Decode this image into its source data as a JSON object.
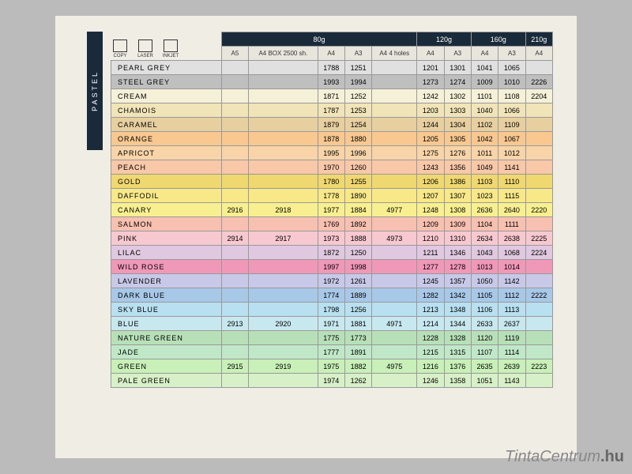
{
  "sidebar": {
    "label": "PASTEL"
  },
  "icons": [
    {
      "label": "COPY"
    },
    {
      "label": "LASER"
    },
    {
      "label": "INKJET"
    }
  ],
  "weights": [
    "80g",
    "120g",
    "160g",
    "210g"
  ],
  "weight_spans": [
    5,
    2,
    2,
    1
  ],
  "sizes": [
    "A5",
    "A4 BOX 2500 sh.",
    "A4",
    "A3",
    "A4 4 holes",
    "A4",
    "A3",
    "A4",
    "A3",
    "A4"
  ],
  "rows": [
    {
      "name": "PEARL GREY",
      "bg": "#e0e0e0",
      "v": [
        "",
        "",
        "1788",
        "1251",
        "",
        "1201",
        "1301",
        "1041",
        "1065",
        ""
      ]
    },
    {
      "name": "STEEL GREY",
      "bg": "#bfbfbf",
      "v": [
        "",
        "",
        "1993",
        "1994",
        "",
        "1273",
        "1274",
        "1009",
        "1010",
        "2226"
      ]
    },
    {
      "name": "CREAM",
      "bg": "#f5f0d8",
      "v": [
        "",
        "",
        "1871",
        "1252",
        "",
        "1242",
        "1302",
        "1101",
        "1108",
        "2204"
      ]
    },
    {
      "name": "CHAMOIS",
      "bg": "#f0e4b8",
      "v": [
        "",
        "",
        "1787",
        "1253",
        "",
        "1203",
        "1303",
        "1040",
        "1066",
        ""
      ]
    },
    {
      "name": "CARAMEL",
      "bg": "#e8cfa0",
      "v": [
        "",
        "",
        "1879",
        "1254",
        "",
        "1244",
        "1304",
        "1102",
        "1109",
        ""
      ]
    },
    {
      "name": "ORANGE",
      "bg": "#f8c890",
      "v": [
        "",
        "",
        "1878",
        "1880",
        "",
        "1205",
        "1305",
        "1042",
        "1067",
        ""
      ]
    },
    {
      "name": "APRICOT",
      "bg": "#f8d4a8",
      "v": [
        "",
        "",
        "1995",
        "1996",
        "",
        "1275",
        "1276",
        "1011",
        "1012",
        ""
      ]
    },
    {
      "name": "PEACH",
      "bg": "#f8c8a8",
      "v": [
        "",
        "",
        "1970",
        "1260",
        "",
        "1243",
        "1356",
        "1049",
        "1141",
        ""
      ]
    },
    {
      "name": "GOLD",
      "bg": "#f0d870",
      "v": [
        "",
        "",
        "1780",
        "1255",
        "",
        "1206",
        "1386",
        "1103",
        "1110",
        ""
      ]
    },
    {
      "name": "DAFFODIL",
      "bg": "#f8e888",
      "v": [
        "",
        "",
        "1778",
        "1890",
        "",
        "1207",
        "1307",
        "1023",
        "1115",
        ""
      ]
    },
    {
      "name": "CANARY",
      "bg": "#f8f090",
      "v": [
        "2916",
        "2918",
        "1977",
        "1884",
        "4977",
        "1248",
        "1308",
        "2636",
        "2640",
        "2220"
      ]
    },
    {
      "name": "SALMON",
      "bg": "#f8c0b0",
      "v": [
        "",
        "",
        "1769",
        "1892",
        "",
        "1209",
        "1309",
        "1104",
        "1111",
        ""
      ]
    },
    {
      "name": "PINK",
      "bg": "#f8c8d0",
      "v": [
        "2914",
        "2917",
        "1973",
        "1888",
        "4973",
        "1210",
        "1310",
        "2634",
        "2638",
        "2225"
      ]
    },
    {
      "name": "LILAC",
      "bg": "#e0c8e0",
      "v": [
        "",
        "",
        "1872",
        "1250",
        "",
        "1211",
        "1346",
        "1043",
        "1068",
        "2224"
      ]
    },
    {
      "name": "WILD ROSE",
      "bg": "#f098b8",
      "v": [
        "",
        "",
        "1997",
        "1998",
        "",
        "1277",
        "1278",
        "1013",
        "1014",
        ""
      ]
    },
    {
      "name": "LAVENDER",
      "bg": "#c8c8e8",
      "v": [
        "",
        "",
        "1972",
        "1261",
        "",
        "1245",
        "1357",
        "1050",
        "1142",
        ""
      ]
    },
    {
      "name": "DARK BLUE",
      "bg": "#a8c8e8",
      "v": [
        "",
        "",
        "1774",
        "1889",
        "",
        "1282",
        "1342",
        "1105",
        "1112",
        "2222"
      ]
    },
    {
      "name": "SKY BLUE",
      "bg": "#b8e0f0",
      "v": [
        "",
        "",
        "1798",
        "1256",
        "",
        "1213",
        "1348",
        "1106",
        "1113",
        ""
      ]
    },
    {
      "name": "BLUE",
      "bg": "#c8e8f0",
      "v": [
        "2913",
        "2920",
        "1971",
        "1881",
        "4971",
        "1214",
        "1344",
        "2633",
        "2637",
        ""
      ]
    },
    {
      "name": "NATURE GREEN",
      "bg": "#b8e0b8",
      "v": [
        "",
        "",
        "1775",
        "1773",
        "",
        "1228",
        "1328",
        "1120",
        "1119",
        ""
      ]
    },
    {
      "name": "JADE",
      "bg": "#c0e8c8",
      "v": [
        "",
        "",
        "1777",
        "1891",
        "",
        "1215",
        "1315",
        "1107",
        "1114",
        ""
      ]
    },
    {
      "name": "GREEN",
      "bg": "#c8f0b8",
      "v": [
        "2915",
        "2919",
        "1975",
        "1882",
        "4975",
        "1216",
        "1376",
        "2635",
        "2639",
        "2223"
      ]
    },
    {
      "name": "PALE GREEN",
      "bg": "#d8f0c8",
      "v": [
        "",
        "",
        "1974",
        "1262",
        "",
        "1246",
        "1358",
        "1051",
        "1143",
        ""
      ]
    }
  ],
  "watermark": {
    "a": "TintaCentrum",
    "b": ".hu"
  }
}
